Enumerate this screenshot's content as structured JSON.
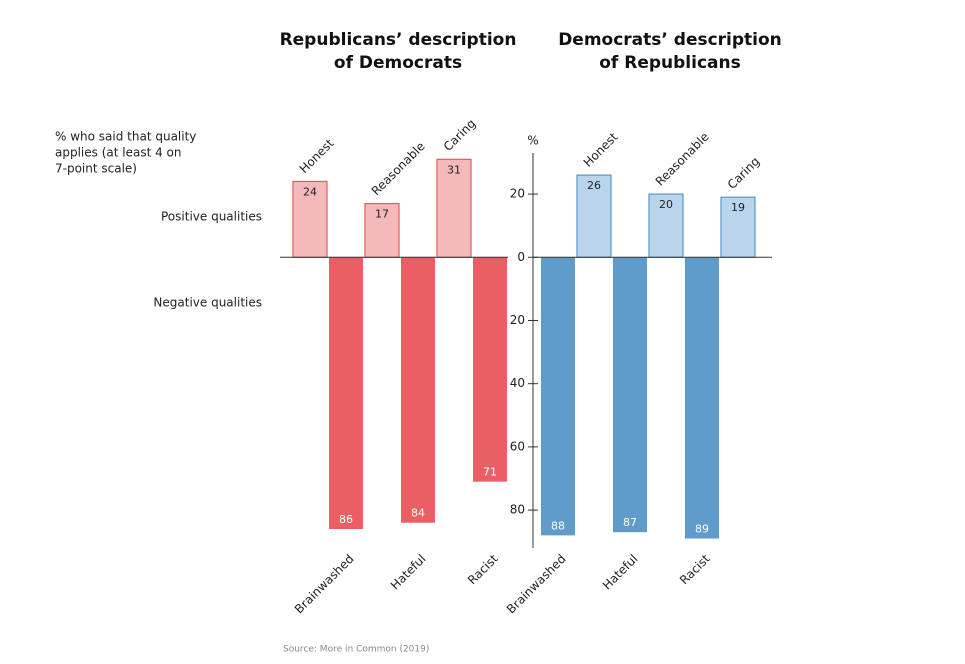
{
  "note": [
    "% who said that quality",
    "applies (at least 4 on",
    "7-point scale)"
  ],
  "source": "Source: More in Common (2019)",
  "chart_data": [
    {
      "type": "bar",
      "title": [
        "Republicans’ description",
        "of Democrats"
      ],
      "ylim": [
        -92,
        33
      ],
      "series": [
        {
          "name": "Positive qualities",
          "categories": [
            "Honest",
            "Reasonable",
            "Caring"
          ],
          "values": [
            24,
            17,
            31
          ],
          "color": "#f5b9bb",
          "stroke": "#e8595e"
        },
        {
          "name": "Negative qualities",
          "categories": [
            "Brainwashed",
            "Hateful",
            "Racist"
          ],
          "values": [
            -86,
            -84,
            -71
          ],
          "value_labels": [
            "86",
            "84",
            "71"
          ],
          "color": "#e95f64"
        }
      ]
    },
    {
      "type": "bar",
      "title": [
        "Democrats’ description",
        "of Republicans"
      ],
      "ylabel": "%",
      "ylim": [
        -92,
        33
      ],
      "yticks": [
        {
          "value": 20,
          "label": "20"
        },
        0,
        {
          "value": -20,
          "label": "20"
        },
        {
          "value": -40,
          "label": "40"
        },
        {
          "value": -60,
          "label": "60"
        },
        {
          "value": -80,
          "label": "80"
        }
      ],
      "series": [
        {
          "categories": [
            "Honest",
            "Reasonable",
            "Caring"
          ],
          "values": [
            26,
            20,
            19
          ],
          "color": "#bad4eb",
          "stroke": "#5b97c7"
        },
        {
          "categories": [
            "Brainwashed",
            "Hateful",
            "Racist"
          ],
          "values": [
            -88,
            -87,
            -89
          ],
          "value_labels": [
            "88",
            "87",
            "89"
          ],
          "color": "#5f9bcb"
        }
      ]
    }
  ]
}
